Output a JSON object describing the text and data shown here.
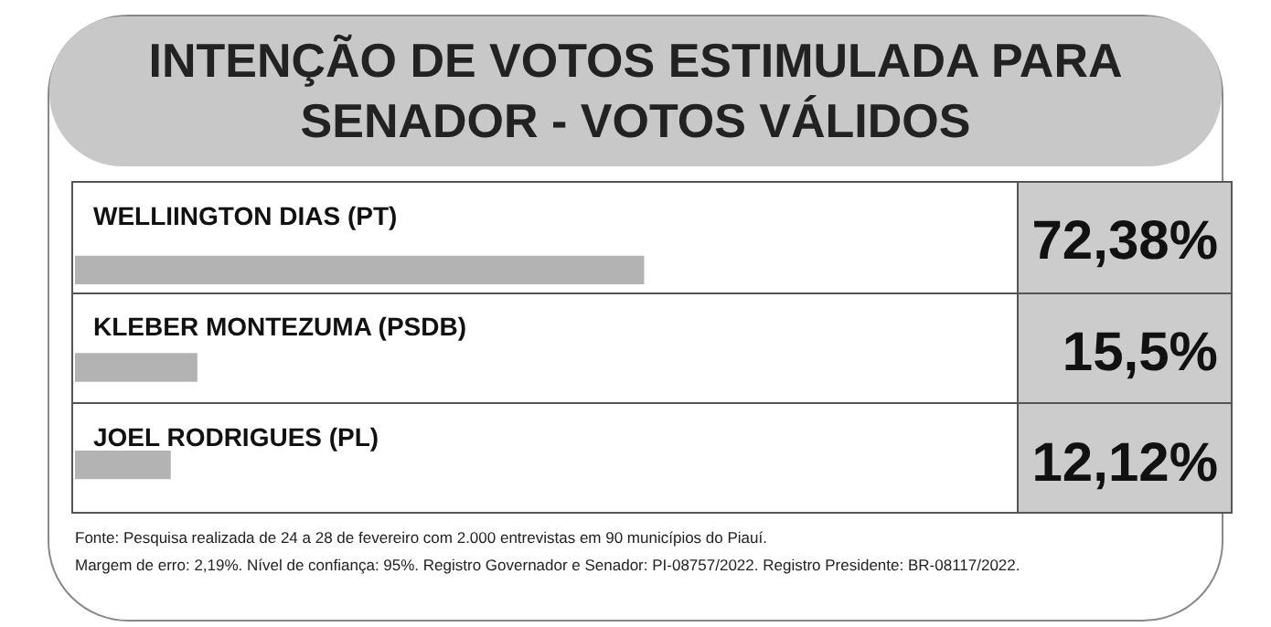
{
  "chart_data": {
    "type": "bar",
    "orientation": "horizontal",
    "title": "INTENÇÃO DE VOTOS ESTIMULADA PARA SENADOR - VOTOS VÁLIDOS",
    "categories": [
      "WELLIINGTON DIAS (PT)",
      "KLEBER MONTEZUMA (PSDB)",
      "JOEL RODRIGUES (PL)"
    ],
    "values": [
      72.38,
      15.5,
      12.12
    ],
    "color": "#b3b3b3",
    "value_labels": [
      "72,38%",
      "15,5%",
      "12,12%"
    ],
    "annotations": [
      "Fonte: Pesquisa realizada de 24 a 28 de fevereiro com 2.000 entrevistas em 90 municípios do Piauí.",
      "Margem de erro: 2,19%. Nível de confiança: 95%. Registro Governador e Senador: PI-08757/2022. Registro Presidente: BR-08117/2022."
    ]
  }
}
